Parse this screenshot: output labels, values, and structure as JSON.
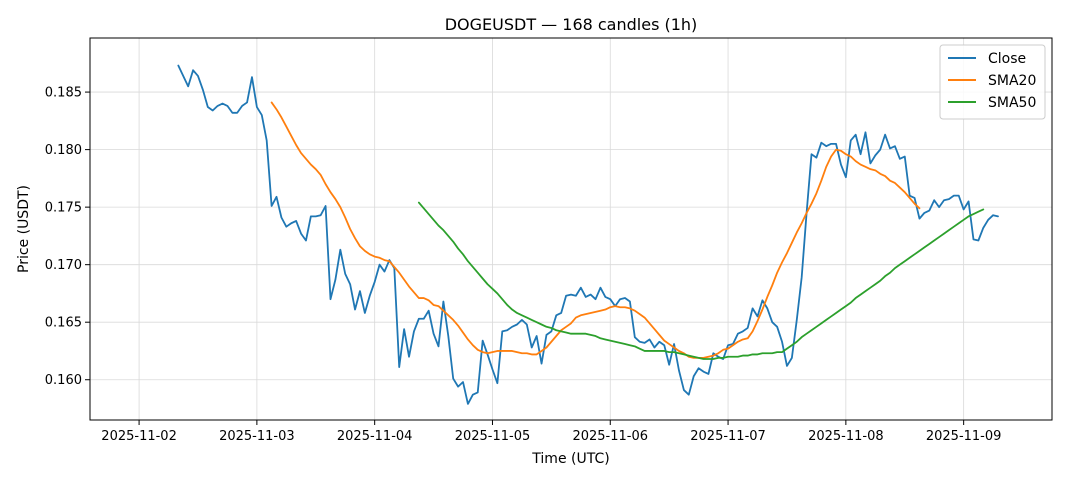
{
  "chart_data": {
    "type": "line",
    "title": "DOGEUSDT — 168 candles (1h)",
    "xlabel": "Time (UTC)",
    "ylabel": "Price (USDT)",
    "x_unit": "hours since 2025-11-02 00:00 UTC",
    "xlim": [
      -10,
      186
    ],
    "ylim": [
      0.1565,
      0.1897
    ],
    "grid": true,
    "legend_position": "top-right",
    "x_ticks": [
      {
        "value": 0,
        "label": "2025-11-02"
      },
      {
        "value": 24,
        "label": "2025-11-03"
      },
      {
        "value": 48,
        "label": "2025-11-04"
      },
      {
        "value": 72,
        "label": "2025-11-05"
      },
      {
        "value": 96,
        "label": "2025-11-06"
      },
      {
        "value": 120,
        "label": "2025-11-07"
      },
      {
        "value": 144,
        "label": "2025-11-08"
      },
      {
        "value": 168,
        "label": "2025-11-09"
      }
    ],
    "y_ticks": [
      {
        "value": 0.16,
        "label": "0.160"
      },
      {
        "value": 0.165,
        "label": "0.165"
      },
      {
        "value": 0.17,
        "label": "0.170"
      },
      {
        "value": 0.175,
        "label": "0.175"
      },
      {
        "value": 0.18,
        "label": "0.180"
      },
      {
        "value": 0.185,
        "label": "0.185"
      }
    ],
    "series": [
      {
        "name": "Close",
        "color": "#1f77b4",
        "x_start": 8,
        "values": [
          0.1873,
          0.1864,
          0.1855,
          0.1869,
          0.1864,
          0.1852,
          0.1837,
          0.1834,
          0.1838,
          0.184,
          0.1838,
          0.1832,
          0.1832,
          0.1838,
          0.1841,
          0.1863,
          0.1837,
          0.183,
          0.1808,
          0.1751,
          0.1759,
          0.1741,
          0.1733,
          0.1736,
          0.1738,
          0.1727,
          0.1721,
          0.1742,
          0.1742,
          0.1743,
          0.1751,
          0.167,
          0.1687,
          0.1713,
          0.1692,
          0.1683,
          0.1661,
          0.1677,
          0.1658,
          0.1673,
          0.1685,
          0.17,
          0.1694,
          0.1704,
          0.1697,
          0.1611,
          0.1644,
          0.162,
          0.1642,
          0.1653,
          0.1653,
          0.166,
          0.164,
          0.1629,
          0.1668,
          0.1638,
          0.1601,
          0.1594,
          0.1598,
          0.1579,
          0.1587,
          0.1589,
          0.1634,
          0.1622,
          0.1609,
          0.1597,
          0.1642,
          0.1643,
          0.1646,
          0.1648,
          0.1652,
          0.1648,
          0.1628,
          0.1638,
          0.1614,
          0.1639,
          0.1642,
          0.1656,
          0.1658,
          0.1673,
          0.1674,
          0.1673,
          0.168,
          0.1672,
          0.1674,
          0.167,
          0.168,
          0.1672,
          0.167,
          0.1664,
          0.167,
          0.1671,
          0.1668,
          0.1637,
          0.1633,
          0.1632,
          0.1635,
          0.1628,
          0.1633,
          0.163,
          0.1613,
          0.1631,
          0.1608,
          0.1591,
          0.1587,
          0.1603,
          0.161,
          0.1607,
          0.1605,
          0.1623,
          0.162,
          0.1618,
          0.163,
          0.1631,
          0.164,
          0.1642,
          0.1645,
          0.1662,
          0.1655,
          0.1669,
          0.1662,
          0.165,
          0.1646,
          0.1633,
          0.1612,
          0.1619,
          0.1652,
          0.1689,
          0.1745,
          0.1796,
          0.1793,
          0.1806,
          0.1803,
          0.1805,
          0.1805,
          0.1787,
          0.1776,
          0.1808,
          0.1813,
          0.1796,
          0.1815,
          0.1788,
          0.1795,
          0.18,
          0.1813,
          0.1801,
          0.1803,
          0.1792,
          0.1794,
          0.176,
          0.1758,
          0.174,
          0.1745,
          0.1747,
          0.1756,
          0.175,
          0.1756,
          0.1757,
          0.176,
          0.176,
          0.1748,
          0.1755,
          0.1722,
          0.1721,
          0.1732,
          0.1739,
          0.1743,
          0.1742
        ]
      },
      {
        "name": "SMA20",
        "color": "#ff7f0e",
        "x_start": 27,
        "values": [
          0.1841,
          0.1835,
          0.1828,
          0.182,
          0.1812,
          0.1804,
          0.1797,
          0.1792,
          0.1787,
          0.1783,
          0.1778,
          0.177,
          0.1763,
          0.1757,
          0.175,
          0.1741,
          0.1731,
          0.1723,
          0.1716,
          0.1712,
          0.1709,
          0.1707,
          0.1706,
          0.1704,
          0.1703,
          0.1698,
          0.1693,
          0.1687,
          0.1681,
          0.1676,
          0.1671,
          0.1671,
          0.1669,
          0.1665,
          0.1664,
          0.166,
          0.1656,
          0.1652,
          0.1647,
          0.1641,
          0.1635,
          0.163,
          0.1626,
          0.1624,
          0.1623,
          0.1624,
          0.1625,
          0.1625,
          0.1625,
          0.1625,
          0.1624,
          0.1623,
          0.1623,
          0.1622,
          0.1622,
          0.1625,
          0.1628,
          0.1633,
          0.1638,
          0.1643,
          0.1646,
          0.1649,
          0.1654,
          0.1656,
          0.1657,
          0.1658,
          0.1659,
          0.166,
          0.1661,
          0.1663,
          0.1664,
          0.1663,
          0.1663,
          0.1662,
          0.166,
          0.1657,
          0.1654,
          0.1649,
          0.1644,
          0.1639,
          0.1634,
          0.1631,
          0.1628,
          0.1625,
          0.1623,
          0.162,
          0.1619,
          0.1619,
          0.1619,
          0.162,
          0.1621,
          0.1623,
          0.1626,
          0.1627,
          0.163,
          0.1633,
          0.1635,
          0.1636,
          0.1642,
          0.1651,
          0.1661,
          0.1672,
          0.1682,
          0.1693,
          0.1702,
          0.171,
          0.1719,
          0.1728,
          0.1736,
          0.1745,
          0.1753,
          0.1762,
          0.1773,
          0.1785,
          0.1794,
          0.18,
          0.1799,
          0.1796,
          0.1794,
          0.179,
          0.1787,
          0.1785,
          0.1783,
          0.1782,
          0.1779,
          0.1777,
          0.1773,
          0.1771,
          0.1767,
          0.1763,
          0.1758,
          0.1753,
          0.1749
        ]
      },
      {
        "name": "SMA50",
        "color": "#2ca02c",
        "x_start": 57,
        "values": [
          0.1754,
          0.1749,
          0.1744,
          0.1739,
          0.1734,
          0.173,
          0.1725,
          0.172,
          0.1714,
          0.1709,
          0.1703,
          0.1698,
          0.1693,
          0.1688,
          0.1683,
          0.1679,
          0.1675,
          0.167,
          0.1665,
          0.1661,
          0.1658,
          0.1656,
          0.1654,
          0.1652,
          0.165,
          0.1648,
          0.1646,
          0.1645,
          0.1643,
          0.1642,
          0.1641,
          0.164,
          0.164,
          0.164,
          0.164,
          0.1639,
          0.1638,
          0.1636,
          0.1635,
          0.1634,
          0.1633,
          0.1632,
          0.1631,
          0.163,
          0.1629,
          0.1627,
          0.1625,
          0.1625,
          0.1625,
          0.1625,
          0.1625,
          0.1624,
          0.1624,
          0.1623,
          0.1622,
          0.1621,
          0.162,
          0.1619,
          0.1618,
          0.1618,
          0.1618,
          0.1619,
          0.1619,
          0.162,
          0.162,
          0.162,
          0.1621,
          0.1621,
          0.1622,
          0.1622,
          0.1623,
          0.1623,
          0.1623,
          0.1624,
          0.1624,
          0.1627,
          0.163,
          0.1633,
          0.1637,
          0.164,
          0.1643,
          0.1646,
          0.1649,
          0.1652,
          0.1655,
          0.1658,
          0.1661,
          0.1664,
          0.1667,
          0.1671,
          0.1674,
          0.1677,
          0.168,
          0.1683,
          0.1686,
          0.169,
          0.1693,
          0.1697,
          0.17,
          0.1703,
          0.1706,
          0.1709,
          0.1712,
          0.1715,
          0.1718,
          0.1721,
          0.1724,
          0.1727,
          0.173,
          0.1733,
          0.1736,
          0.1739,
          0.1742,
          0.1744,
          0.1746,
          0.1748
        ]
      }
    ]
  }
}
